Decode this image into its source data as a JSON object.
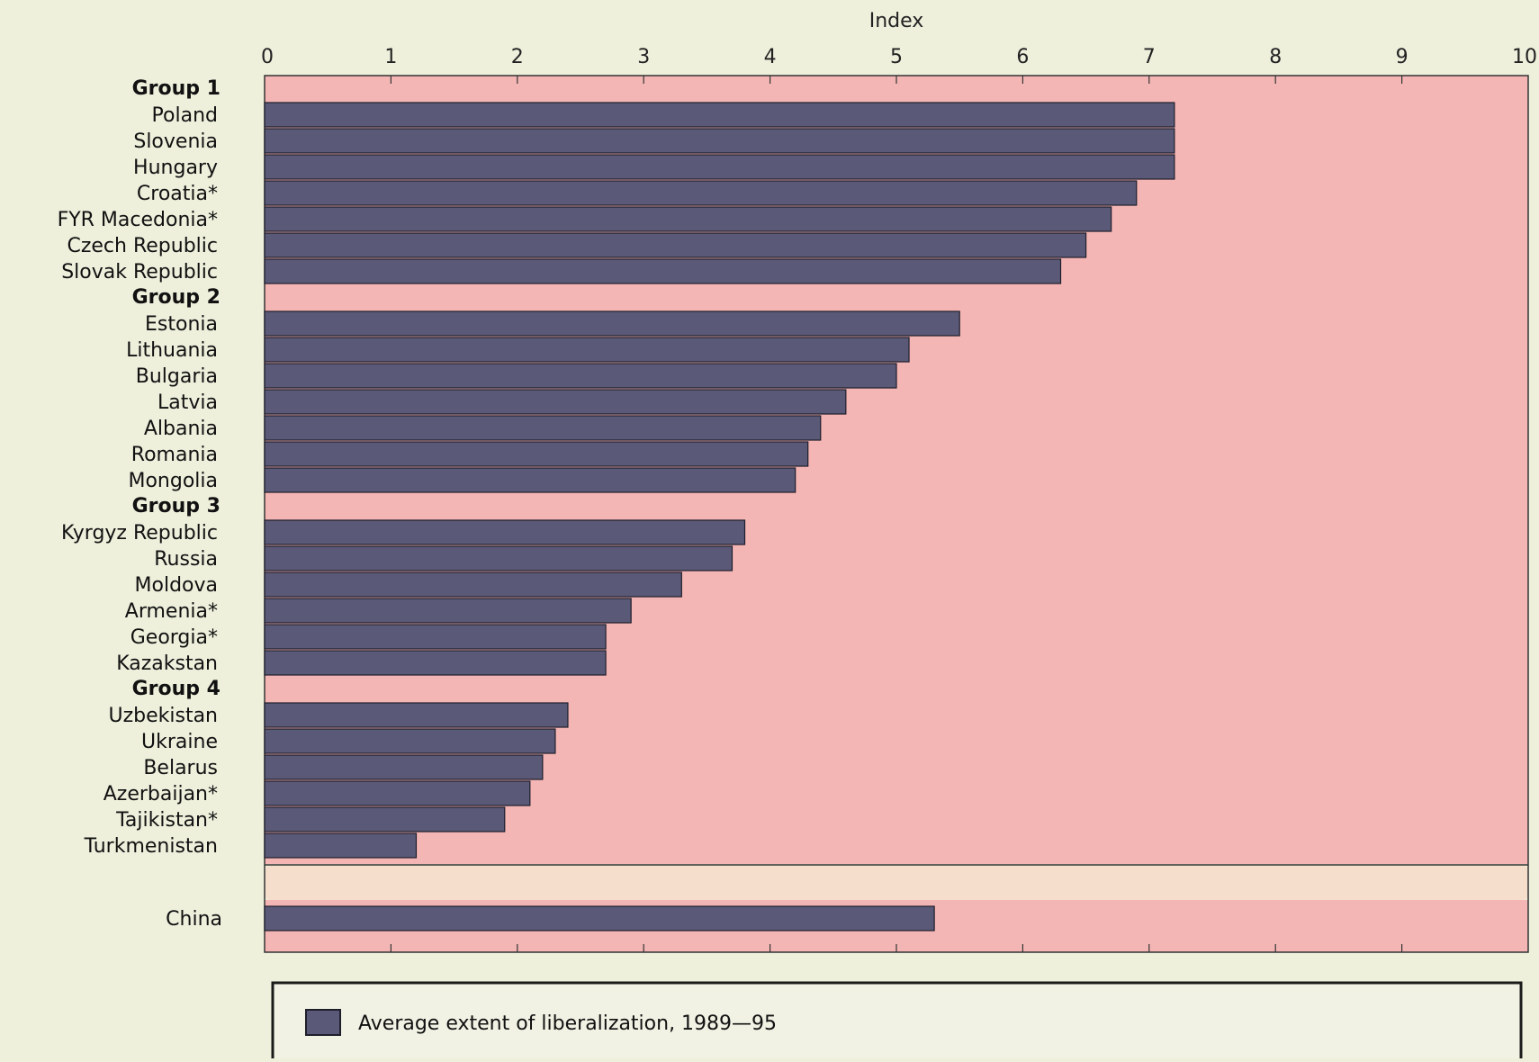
{
  "chart_data": {
    "type": "bar",
    "orientation": "horizontal",
    "title": "",
    "xlabel": "Index",
    "ylabel": "",
    "xlim": [
      0,
      10
    ],
    "x_ticks": [
      "0",
      "1",
      "2",
      "3",
      "4",
      "5",
      "6",
      "7",
      "8",
      "9",
      "10"
    ],
    "grid": false,
    "legend": {
      "position": "bottom",
      "entries": [
        {
          "label": "Average extent of liberalization, 1989—95",
          "color": "#5a5a78"
        }
      ]
    },
    "colors": {
      "bar": "#5a5a78",
      "plot_background": "#f4b6b4",
      "separator_band": "#f5dfcc",
      "page_background": "#eef0dc"
    },
    "groups": [
      {
        "name": "Group 1",
        "items": [
          {
            "category": "Poland",
            "value": 7.2
          },
          {
            "category": "Slovenia",
            "value": 7.2
          },
          {
            "category": "Hungary",
            "value": 7.2
          },
          {
            "category": "Croatia*",
            "value": 6.9
          },
          {
            "category": "FYR Macedonia*",
            "value": 6.7
          },
          {
            "category": "Czech Republic",
            "value": 6.5
          },
          {
            "category": "Slovak Republic",
            "value": 6.3
          }
        ]
      },
      {
        "name": "Group 2",
        "items": [
          {
            "category": "Estonia",
            "value": 5.5
          },
          {
            "category": "Lithuania",
            "value": 5.1
          },
          {
            "category": "Bulgaria",
            "value": 5.0
          },
          {
            "category": "Latvia",
            "value": 4.6
          },
          {
            "category": "Albania",
            "value": 4.4
          },
          {
            "category": "Romania",
            "value": 4.3
          },
          {
            "category": "Mongolia",
            "value": 4.2
          }
        ]
      },
      {
        "name": "Group 3",
        "items": [
          {
            "category": "Kyrgyz Republic",
            "value": 3.8
          },
          {
            "category": "Russia",
            "value": 3.7
          },
          {
            "category": "Moldova",
            "value": 3.3
          },
          {
            "category": "Armenia*",
            "value": 2.9
          },
          {
            "category": "Georgia*",
            "value": 2.7
          },
          {
            "category": "Kazakstan",
            "value": 2.7
          }
        ]
      },
      {
        "name": "Group 4",
        "items": [
          {
            "category": "Uzbekistan",
            "value": 2.4
          },
          {
            "category": "Ukraine",
            "value": 2.3
          },
          {
            "category": "Belarus",
            "value": 2.2
          },
          {
            "category": "Azerbaijan*",
            "value": 2.1
          },
          {
            "category": "Tajikistan*",
            "value": 1.9
          },
          {
            "category": "Turkmenistan",
            "value": 1.2
          }
        ]
      }
    ],
    "comparison": {
      "items": [
        {
          "category": "China",
          "value": 5.3
        }
      ]
    }
  }
}
